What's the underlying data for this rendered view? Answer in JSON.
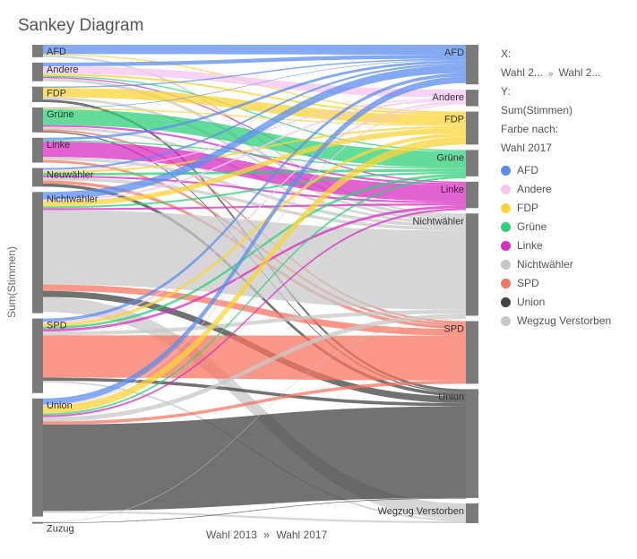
{
  "title": "Sankey Diagram",
  "ylabel": "Sum(Stimmen)",
  "xaxis": {
    "from": "Wahl 2013",
    "sep": "»",
    "to": "Wahl 2017"
  },
  "side": {
    "x_label": "X:",
    "x_from": "Wahl 2...",
    "x_sep": "»",
    "x_to": "Wahl 2...",
    "y_label": "Y:",
    "y_value": "Sum(Stimmen)",
    "color_label": "Farbe nach:",
    "color_value": "Wahl 2017"
  },
  "chart_data": {
    "type": "sankey",
    "title": "Sankey Diagram",
    "ylabel": "Sum(Stimmen)",
    "stages": [
      "Wahl 2013",
      "Wahl 2017"
    ],
    "sources": [
      {
        "name": "AFD",
        "value": 2.0
      },
      {
        "name": "Andere",
        "value": 3.0
      },
      {
        "name": "FDP",
        "value": 2.5
      },
      {
        "name": "Grüne",
        "value": 4.0
      },
      {
        "name": "Linke",
        "value": 4.0
      },
      {
        "name": "Neuwähler",
        "value": 3.0
      },
      {
        "name": "Nichtwähler",
        "value": 19.5
      },
      {
        "name": "SPD",
        "value": 12.0
      },
      {
        "name": "Union",
        "value": 19.0
      },
      {
        "name": "Zuzug",
        "value": 0.2
      }
    ],
    "targets": [
      {
        "name": "AFD",
        "value": 6.0
      },
      {
        "name": "Andere",
        "value": 2.5
      },
      {
        "name": "FDP",
        "value": 5.0
      },
      {
        "name": "Grüne",
        "value": 4.0
      },
      {
        "name": "Linke",
        "value": 4.0
      },
      {
        "name": "Nichtwähler",
        "value": 15.5
      },
      {
        "name": "SPD",
        "value": 9.5
      },
      {
        "name": "Union",
        "value": 16.5
      },
      {
        "name": "Wegzug Verstorben",
        "value": 3.0
      }
    ],
    "colors": {
      "AFD": "#5b8def",
      "Andere": "#f7c4f0",
      "FDP": "#fbd43a",
      "Grüne": "#2fd07a",
      "Linke": "#d82ec2",
      "Nichtwähler": "#c8c8c8",
      "SPD": "#f77462",
      "Union": "#434343",
      "Wegzug Verstorben": "#c8c8c8"
    },
    "flows": [
      {
        "from": "AFD",
        "to": "AFD",
        "value": 1.5
      },
      {
        "from": "AFD",
        "to": "FDP",
        "value": 0.2
      },
      {
        "from": "AFD",
        "to": "Nichtwähler",
        "value": 0.3
      },
      {
        "from": "Andere",
        "to": "AFD",
        "value": 0.6
      },
      {
        "from": "Andere",
        "to": "Andere",
        "value": 1.2
      },
      {
        "from": "Andere",
        "to": "FDP",
        "value": 0.3
      },
      {
        "from": "Andere",
        "to": "Grüne",
        "value": 0.2
      },
      {
        "from": "Andere",
        "to": "Linke",
        "value": 0.2
      },
      {
        "from": "Andere",
        "to": "Nichtwähler",
        "value": 0.5
      },
      {
        "from": "FDP",
        "to": "AFD",
        "value": 0.2
      },
      {
        "from": "FDP",
        "to": "FDP",
        "value": 1.5
      },
      {
        "from": "FDP",
        "to": "Nichtwähler",
        "value": 0.4
      },
      {
        "from": "FDP",
        "to": "Union",
        "value": 0.4
      },
      {
        "from": "Grüne",
        "to": "AFD",
        "value": 0.1
      },
      {
        "from": "Grüne",
        "to": "FDP",
        "value": 0.2
      },
      {
        "from": "Grüne",
        "to": "Grüne",
        "value": 2.5
      },
      {
        "from": "Grüne",
        "to": "Linke",
        "value": 0.3
      },
      {
        "from": "Grüne",
        "to": "Nichtwähler",
        "value": 0.4
      },
      {
        "from": "Grüne",
        "to": "SPD",
        "value": 0.3
      },
      {
        "from": "Grüne",
        "to": "Union",
        "value": 0.2
      },
      {
        "from": "Linke",
        "to": "AFD",
        "value": 0.4
      },
      {
        "from": "Linke",
        "to": "Grüne",
        "value": 0.2
      },
      {
        "from": "Linke",
        "to": "Linke",
        "value": 2.5
      },
      {
        "from": "Linke",
        "to": "Nichtwähler",
        "value": 0.5
      },
      {
        "from": "Linke",
        "to": "SPD",
        "value": 0.4
      },
      {
        "from": "Neuwähler",
        "to": "AFD",
        "value": 0.3
      },
      {
        "from": "Neuwähler",
        "to": "Andere",
        "value": 0.2
      },
      {
        "from": "Neuwähler",
        "to": "FDP",
        "value": 0.3
      },
      {
        "from": "Neuwähler",
        "to": "Grüne",
        "value": 0.4
      },
      {
        "from": "Neuwähler",
        "to": "Linke",
        "value": 0.3
      },
      {
        "from": "Neuwähler",
        "to": "Nichtwähler",
        "value": 0.5
      },
      {
        "from": "Neuwähler",
        "to": "SPD",
        "value": 0.5
      },
      {
        "from": "Neuwähler",
        "to": "Union",
        "value": 0.5
      },
      {
        "from": "Nichtwähler",
        "to": "AFD",
        "value": 1.2
      },
      {
        "from": "Nichtwähler",
        "to": "Andere",
        "value": 0.3
      },
      {
        "from": "Nichtwähler",
        "to": "FDP",
        "value": 0.8
      },
      {
        "from": "Nichtwähler",
        "to": "Grüne",
        "value": 0.3
      },
      {
        "from": "Nichtwähler",
        "to": "Linke",
        "value": 0.3
      },
      {
        "from": "Nichtwähler",
        "to": "Nichtwähler",
        "value": 12.0
      },
      {
        "from": "Nichtwähler",
        "to": "SPD",
        "value": 1.0
      },
      {
        "from": "Nichtwähler",
        "to": "Union",
        "value": 1.0
      },
      {
        "from": "Nichtwähler",
        "to": "Wegzug Verstorben",
        "value": 2.4
      },
      {
        "from": "SPD",
        "to": "AFD",
        "value": 0.5
      },
      {
        "from": "SPD",
        "to": "Andere",
        "value": 0.3
      },
      {
        "from": "SPD",
        "to": "FDP",
        "value": 0.5
      },
      {
        "from": "SPD",
        "to": "Grüne",
        "value": 0.4
      },
      {
        "from": "SPD",
        "to": "Linke",
        "value": 0.4
      },
      {
        "from": "SPD",
        "to": "Nichtwähler",
        "value": 0.6
      },
      {
        "from": "SPD",
        "to": "SPD",
        "value": 6.8
      },
      {
        "from": "SPD",
        "to": "Union",
        "value": 0.5
      },
      {
        "from": "SPD",
        "to": "Wegzug Verstorben",
        "value": 0.3
      },
      {
        "from": "Union",
        "to": "AFD",
        "value": 1.0
      },
      {
        "from": "Union",
        "to": "Andere",
        "value": 0.2
      },
      {
        "from": "Union",
        "to": "FDP",
        "value": 1.2
      },
      {
        "from": "Union",
        "to": "Grüne",
        "value": 0.3
      },
      {
        "from": "Union",
        "to": "Linke",
        "value": 0.3
      },
      {
        "from": "Union",
        "to": "Nichtwähler",
        "value": 0.7
      },
      {
        "from": "Union",
        "to": "SPD",
        "value": 0.5
      },
      {
        "from": "Union",
        "to": "Union",
        "value": 13.9
      },
      {
        "from": "Union",
        "to": "Wegzug Verstorben",
        "value": 0.3
      },
      {
        "from": "Zuzug",
        "to": "Nichtwähler",
        "value": 0.1
      },
      {
        "from": "Zuzug",
        "to": "Union",
        "value": 0.1
      }
    ]
  }
}
